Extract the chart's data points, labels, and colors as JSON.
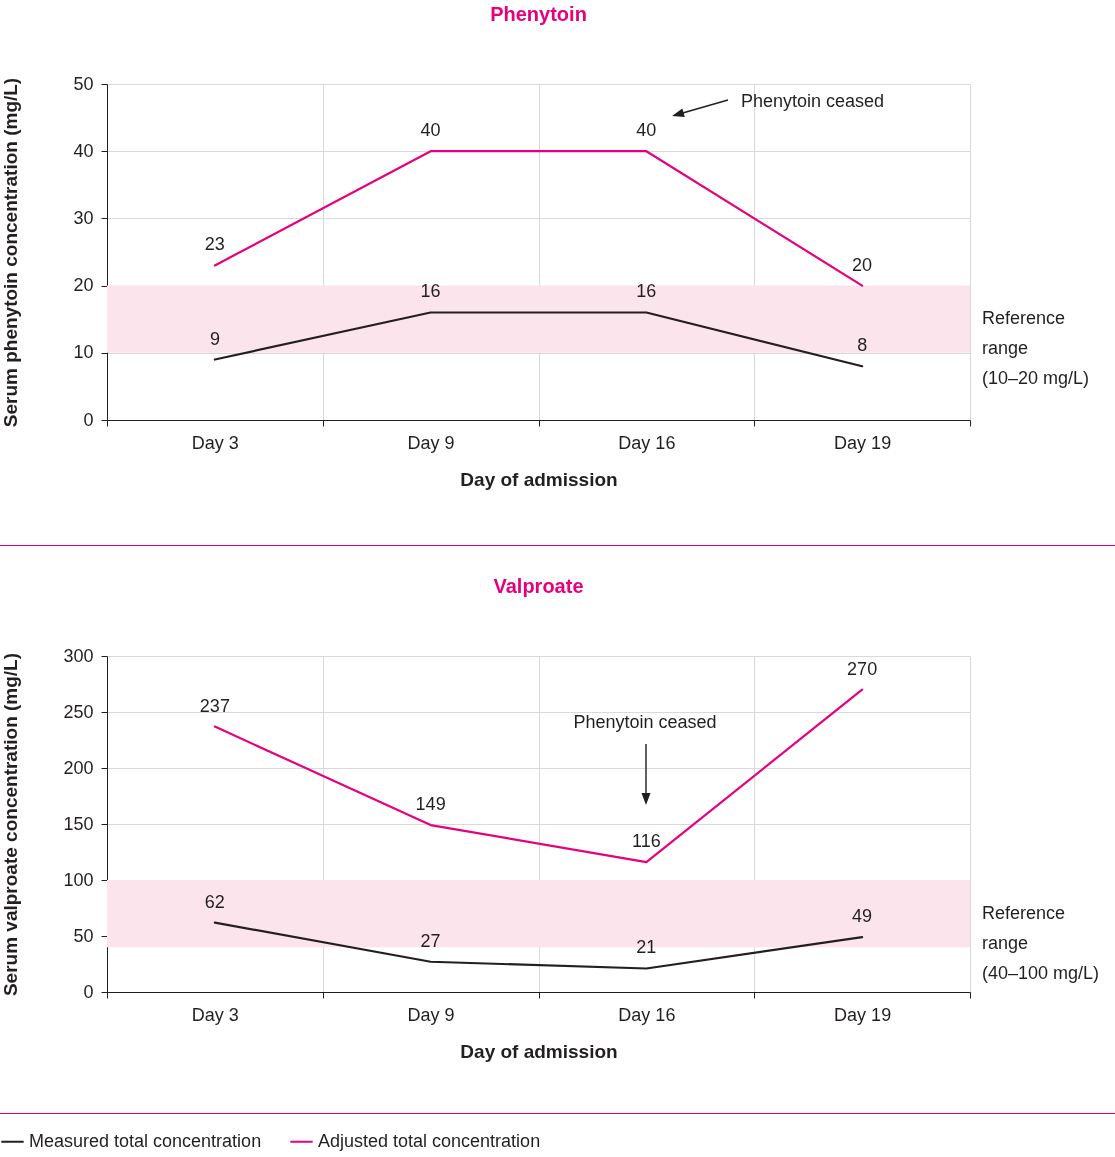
{
  "chart_data": [
    {
      "type": "line",
      "title": "Phenytoin",
      "xlabel": "Day of admission",
      "ylabel": "Serum phenytoin concentration (mg/L)",
      "categories": [
        "Day 3",
        "Day 9",
        "Day 16",
        "Day 19"
      ],
      "series": [
        {
          "color": "#231f20",
          "values": [
            9,
            16,
            16,
            8
          ]
        },
        {
          "color": "#e6007e",
          "values": [
            23,
            40,
            40,
            20
          ]
        }
      ],
      "ylim": [
        0,
        50
      ],
      "yticks": [
        0,
        10,
        20,
        30,
        40,
        50
      ],
      "grid": true,
      "data_labels": true,
      "bands": [
        {
          "axis": "y",
          "from": 10,
          "to": 20,
          "label": "Reference\nrange\n(10–20 mg/L)",
          "color": "#fce4ec"
        }
      ],
      "annotations": [
        "Phenytoin ceased"
      ]
    },
    {
      "type": "line",
      "title": "Valproate",
      "xlabel": "Day of admission",
      "ylabel": "Serum valproate concentration (mg/L)",
      "categories": [
        "Day 3",
        "Day 9",
        "Day 16",
        "Day 19"
      ],
      "series": [
        {
          "name": "Measured total concentration",
          "color": "#231f20",
          "values": [
            62,
            27,
            21,
            49
          ]
        },
        {
          "name": "Adjusted total concentration",
          "color": "#e6007e",
          "values": [
            237,
            149,
            116,
            270
          ]
        }
      ],
      "ylim": [
        0,
        300
      ],
      "yticks": [
        0,
        50,
        100,
        150,
        200,
        250,
        300
      ],
      "grid": true,
      "data_labels": true,
      "legend": "bottom",
      "bands": [
        {
          "axis": "y",
          "from": 40,
          "to": 100,
          "label": "Reference\nrange\n(40–100 mg/L)",
          "color": "#fce4ec"
        }
      ],
      "annotations": [
        "Phenytoin ceased"
      ]
    }
  ]
}
